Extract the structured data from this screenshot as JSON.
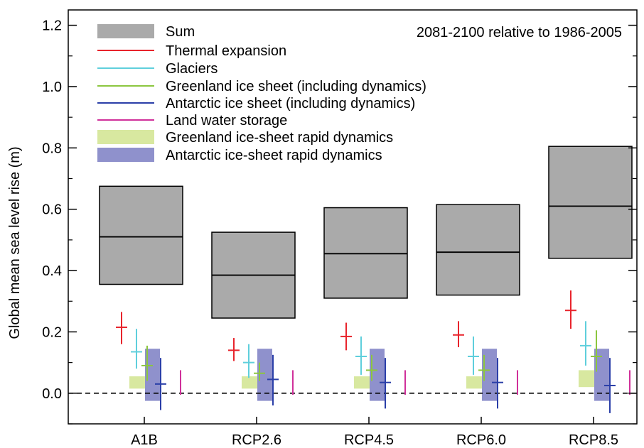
{
  "chart_data": {
    "type": "box",
    "title": "",
    "annotation": "2081-2100 relative to 1986-2005",
    "ylabel": "Global mean sea level rise (m)",
    "xlabel": "",
    "ylim": [
      -0.1,
      1.25
    ],
    "yticks": [
      0.0,
      0.2,
      0.4,
      0.6,
      0.8,
      1.0,
      1.2
    ],
    "ytick_labels": [
      "0.0",
      "0.2",
      "0.4",
      "0.6",
      "0.8",
      "1.0",
      "1.2"
    ],
    "zero_line": "dashed",
    "categories": [
      "A1B",
      "RCP2.6",
      "RCP4.5",
      "RCP6.0",
      "RCP8.5"
    ],
    "legend": [
      {
        "label": "Sum",
        "kind": "box",
        "color": "#aaaaaa"
      },
      {
        "label": "Thermal expansion",
        "kind": "line",
        "color": "#e8242c"
      },
      {
        "label": "Glaciers",
        "kind": "line",
        "color": "#5fcfdc"
      },
      {
        "label": "Greenland ice sheet (including dynamics)",
        "kind": "line",
        "color": "#8cc63f"
      },
      {
        "label": "Antarctic ice sheet (including dynamics)",
        "kind": "line",
        "color": "#2b3fa8"
      },
      {
        "label": "Land water storage",
        "kind": "line",
        "color": "#d0309a"
      },
      {
        "label": "Greenland ice-sheet rapid dynamics",
        "kind": "patch",
        "color": "#d8e8a0"
      },
      {
        "label": "Antarctic ice-sheet rapid dynamics",
        "kind": "patch",
        "color": "#8f91cc"
      }
    ],
    "sum": [
      {
        "low": 0.355,
        "median": 0.51,
        "high": 0.675
      },
      {
        "low": 0.245,
        "median": 0.385,
        "high": 0.525
      },
      {
        "low": 0.31,
        "median": 0.455,
        "high": 0.605
      },
      {
        "low": 0.32,
        "median": 0.46,
        "high": 0.615
      },
      {
        "low": 0.44,
        "median": 0.61,
        "high": 0.805
      }
    ],
    "components": [
      {
        "name": "Thermal expansion",
        "values": [
          {
            "low": 0.16,
            "median": 0.215,
            "high": 0.265
          },
          {
            "low": 0.105,
            "median": 0.14,
            "high": 0.18
          },
          {
            "low": 0.14,
            "median": 0.185,
            "high": 0.23
          },
          {
            "low": 0.15,
            "median": 0.19,
            "high": 0.235
          },
          {
            "low": 0.21,
            "median": 0.27,
            "high": 0.335
          }
        ]
      },
      {
        "name": "Glaciers",
        "values": [
          {
            "low": 0.08,
            "median": 0.135,
            "high": 0.21
          },
          {
            "low": 0.05,
            "median": 0.1,
            "high": 0.16
          },
          {
            "low": 0.06,
            "median": 0.12,
            "high": 0.185
          },
          {
            "low": 0.06,
            "median": 0.12,
            "high": 0.185
          },
          {
            "low": 0.09,
            "median": 0.155,
            "high": 0.235
          }
        ]
      },
      {
        "name": "Greenland ice sheet (including dynamics)",
        "values": [
          {
            "low": 0.04,
            "median": 0.09,
            "high": 0.155
          },
          {
            "low": 0.04,
            "median": 0.065,
            "high": 0.1
          },
          {
            "low": 0.04,
            "median": 0.075,
            "high": 0.125
          },
          {
            "low": 0.04,
            "median": 0.075,
            "high": 0.125
          },
          {
            "low": 0.07,
            "median": 0.12,
            "high": 0.205
          }
        ]
      },
      {
        "name": "Antarctic ice sheet (including dynamics)",
        "values": [
          {
            "low": -0.055,
            "median": 0.03,
            "high": 0.115
          },
          {
            "low": -0.04,
            "median": 0.045,
            "high": 0.125
          },
          {
            "low": -0.05,
            "median": 0.035,
            "high": 0.115
          },
          {
            "low": -0.05,
            "median": 0.035,
            "high": 0.115
          },
          {
            "low": -0.065,
            "median": 0.025,
            "high": 0.115
          }
        ]
      },
      {
        "name": "Land water storage",
        "values": [
          {
            "low": -0.005,
            "median": null,
            "high": 0.075
          },
          {
            "low": -0.005,
            "median": null,
            "high": 0.075
          },
          {
            "low": -0.005,
            "median": null,
            "high": 0.075
          },
          {
            "low": -0.005,
            "median": null,
            "high": 0.075
          },
          {
            "low": -0.005,
            "median": null,
            "high": 0.075
          }
        ]
      }
    ],
    "rapid_dynamics": [
      {
        "name": "Greenland ice-sheet rapid dynamics",
        "values": [
          {
            "low": 0.015,
            "high": 0.055
          },
          {
            "low": 0.015,
            "high": 0.055
          },
          {
            "low": 0.015,
            "high": 0.055
          },
          {
            "low": 0.015,
            "high": 0.055
          },
          {
            "low": 0.02,
            "high": 0.075
          }
        ]
      },
      {
        "name": "Antarctic ice-sheet rapid dynamics",
        "values": [
          {
            "low": -0.025,
            "high": 0.145
          },
          {
            "low": -0.025,
            "high": 0.145
          },
          {
            "low": -0.025,
            "high": 0.145
          },
          {
            "low": -0.025,
            "high": 0.145
          },
          {
            "low": -0.025,
            "high": 0.145
          }
        ]
      }
    ]
  }
}
